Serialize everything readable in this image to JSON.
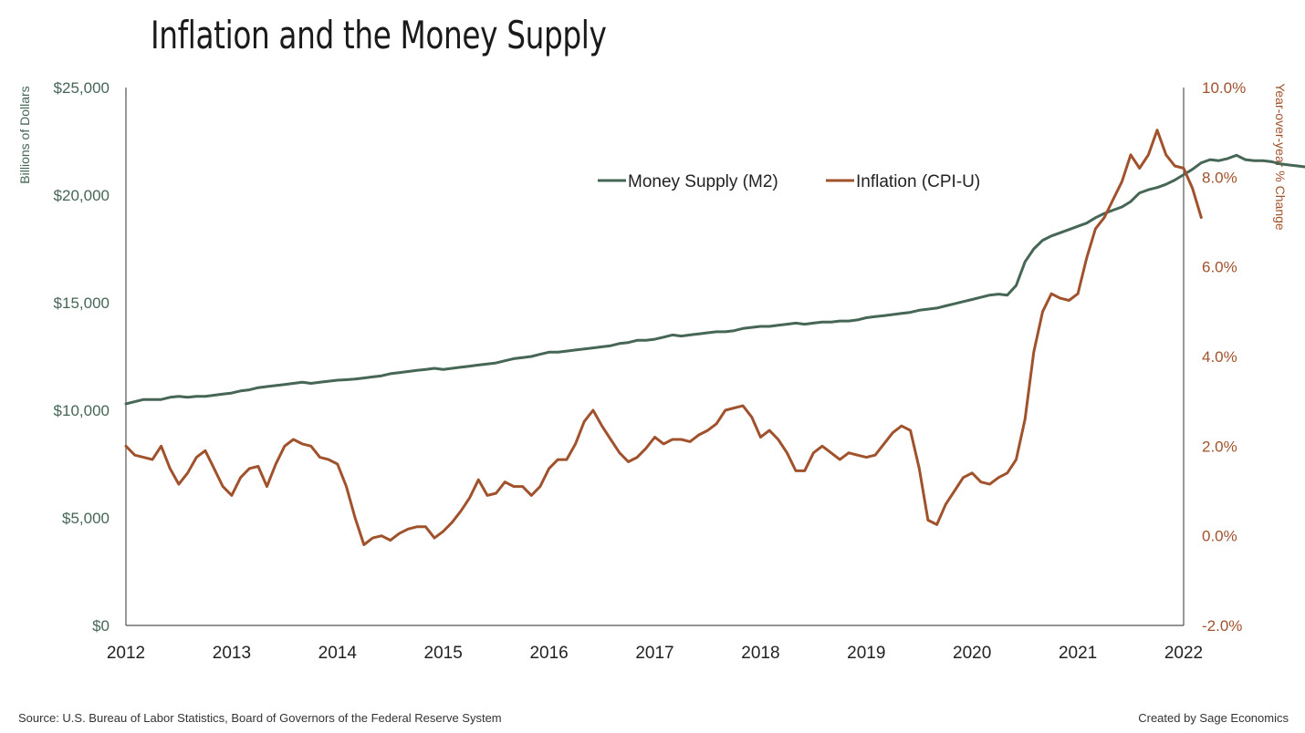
{
  "chart_data": {
    "type": "line",
    "title": "Inflation and the Money Supply",
    "ylabel_left": "Billions of Dollars",
    "ylabel_right": "Year-over-year % Change",
    "x_ticks": [
      "2012",
      "2013",
      "2014",
      "2015",
      "2016",
      "2017",
      "2018",
      "2019",
      "2020",
      "2021",
      "2022"
    ],
    "y_left_ticks": [
      "$0",
      "$5,000",
      "$10,000",
      "$15,000",
      "$20,000",
      "$25,000"
    ],
    "y_right_ticks": [
      "-2.0%",
      "0.0%",
      "2.0%",
      "4.0%",
      "6.0%",
      "8.0%",
      "10.0%"
    ],
    "ylim_left": [
      0,
      25000
    ],
    "ylim_right": [
      -2,
      10
    ],
    "xlim": [
      2012,
      2022
    ],
    "legend_position": "top-right",
    "colors": {
      "m2": "#466656",
      "cpi": "#a0522d"
    },
    "series": [
      {
        "name": "Money Supply (M2)",
        "axis": "left",
        "start": 2012,
        "step_months": 1,
        "values": [
          10300,
          10400,
          10500,
          10500,
          10500,
          10600,
          10650,
          10600,
          10650,
          10650,
          10700,
          10750,
          10800,
          10900,
          10950,
          11050,
          11100,
          11150,
          11200,
          11250,
          11300,
          11250,
          11300,
          11350,
          11400,
          11420,
          11450,
          11500,
          11550,
          11600,
          11700,
          11750,
          11800,
          11850,
          11900,
          11950,
          11900,
          11950,
          12000,
          12050,
          12100,
          12150,
          12200,
          12300,
          12400,
          12450,
          12500,
          12600,
          12700,
          12700,
          12750,
          12800,
          12850,
          12900,
          12950,
          13000,
          13100,
          13150,
          13250,
          13250,
          13300,
          13400,
          13500,
          13450,
          13500,
          13550,
          13600,
          13650,
          13650,
          13700,
          13800,
          13850,
          13900,
          13900,
          13950,
          14000,
          14050,
          14000,
          14050,
          14100,
          14100,
          14150,
          14150,
          14200,
          14300,
          14350,
          14400,
          14450,
          14500,
          14550,
          14650,
          14700,
          14750,
          14850,
          14950,
          15050,
          15150,
          15250,
          15350,
          15400,
          15350,
          15800,
          16900,
          17500,
          17900,
          18100,
          18250,
          18400,
          18550,
          18700,
          18950,
          19150,
          19300,
          19450,
          19700,
          20100,
          20250,
          20350,
          20500,
          20700,
          20950,
          21200,
          21500,
          21650,
          21600,
          21700,
          21850,
          21650,
          21600,
          21600,
          21550,
          21450,
          21400,
          21350,
          21300,
          21300
        ]
      },
      {
        "name": "Inflation (CPI-U)",
        "axis": "right",
        "start": 2012,
        "step_months": 1,
        "values": [
          2.0,
          1.8,
          1.75,
          1.7,
          2.0,
          1.5,
          1.15,
          1.4,
          1.75,
          1.9,
          1.5,
          1.1,
          0.9,
          1.3,
          1.5,
          1.55,
          1.1,
          1.6,
          2.0,
          2.15,
          2.05,
          2.0,
          1.75,
          1.7,
          1.6,
          1.1,
          0.4,
          -0.2,
          -0.05,
          0.0,
          -0.1,
          0.05,
          0.15,
          0.2,
          0.2,
          -0.05,
          0.1,
          0.3,
          0.55,
          0.85,
          1.25,
          0.9,
          0.95,
          1.2,
          1.1,
          1.1,
          0.9,
          1.1,
          1.5,
          1.7,
          1.7,
          2.05,
          2.55,
          2.8,
          2.45,
          2.15,
          1.85,
          1.65,
          1.75,
          1.95,
          2.2,
          2.05,
          2.15,
          2.15,
          2.1,
          2.25,
          2.35,
          2.5,
          2.8,
          2.85,
          2.9,
          2.65,
          2.2,
          2.35,
          2.15,
          1.85,
          1.45,
          1.45,
          1.85,
          2.0,
          1.85,
          1.7,
          1.85,
          1.8,
          1.75,
          1.8,
          2.05,
          2.3,
          2.45,
          2.35,
          1.5,
          0.35,
          0.25,
          0.7,
          1.0,
          1.3,
          1.4,
          1.2,
          1.15,
          1.3,
          1.4,
          1.7,
          2.6,
          4.1,
          5.0,
          5.4,
          5.3,
          5.25,
          5.4,
          6.2,
          6.85,
          7.1,
          7.5,
          7.9,
          8.5,
          8.2,
          8.5,
          9.05,
          8.5,
          8.25,
          8.2,
          7.75,
          7.1
        ]
      }
    ]
  },
  "footer": {
    "source": "Source: U.S. Bureau of Labor Statistics, Board of Governors of the Federal Reserve System",
    "credit": "Created by Sage Economics"
  }
}
